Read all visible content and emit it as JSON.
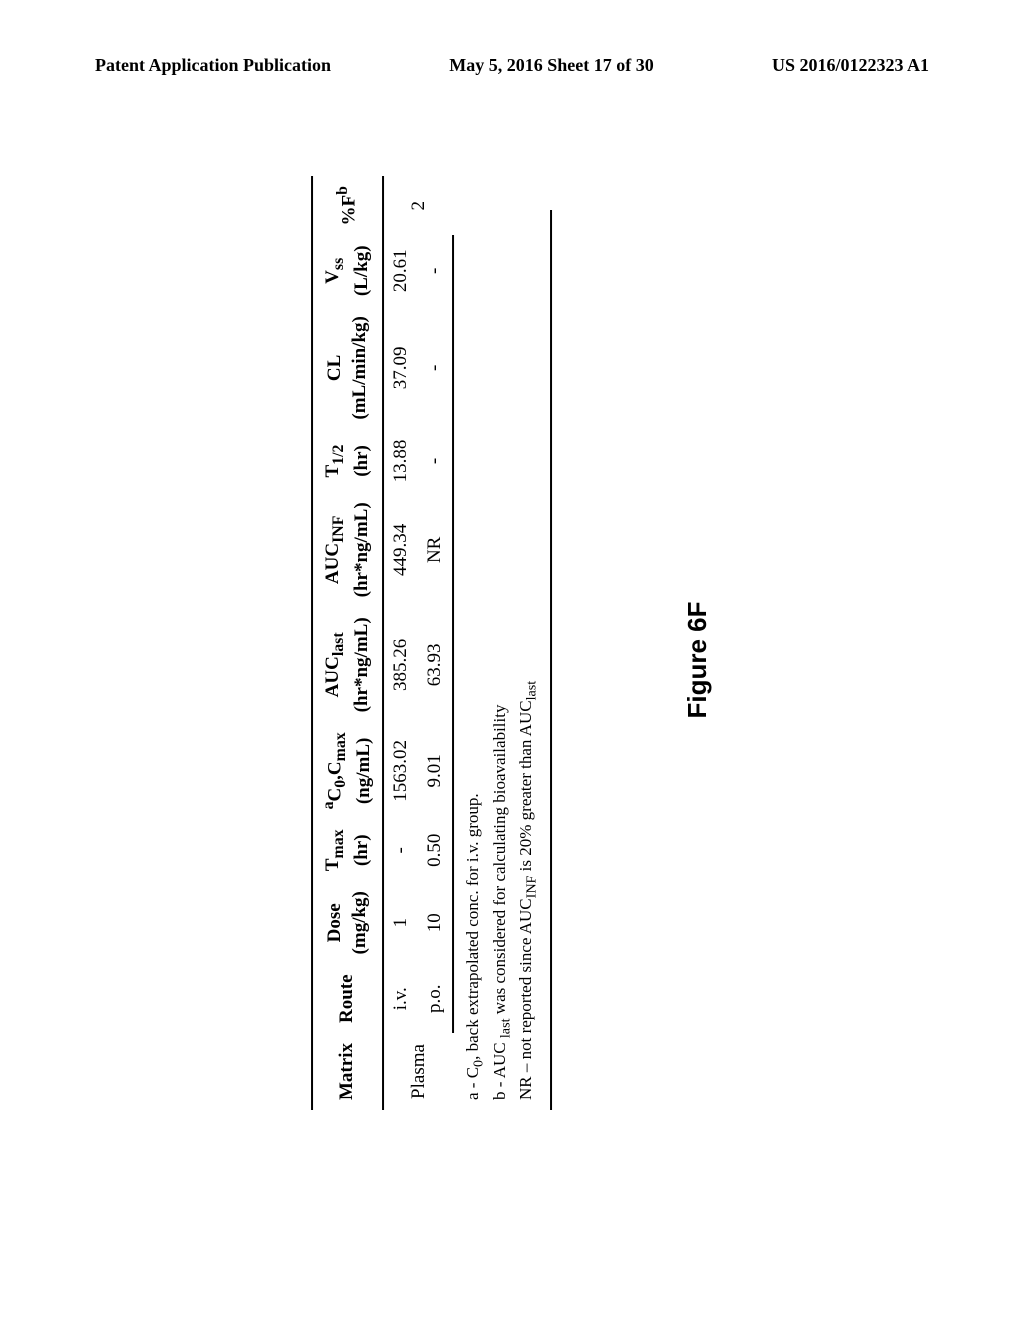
{
  "header": {
    "left": "Patent Application Publication",
    "center": "May 5, 2016  Sheet 17 of 30",
    "right": "US 2016/0122323 A1"
  },
  "table": {
    "columns": [
      {
        "label": "Matrix",
        "sub": ""
      },
      {
        "label": "Route",
        "sub": ""
      },
      {
        "label": "Dose",
        "sub": "(mg/kg)"
      },
      {
        "label": "T",
        "subscript": "max",
        "sub": "(hr)"
      },
      {
        "superscript": "a",
        "label": "C",
        "subscript": "0",
        "label2": ",C",
        "subscript2": "max",
        "sub": "(ng/mL)"
      },
      {
        "label": "AUC",
        "subscript": "last",
        "sub": "(hr*ng/mL)"
      },
      {
        "label": "AUC",
        "subscript": "INF",
        "sub": "(hr*ng/mL)"
      },
      {
        "label": "T",
        "subscript": "1/2",
        "sub": "(hr)"
      },
      {
        "label": "CL",
        "sub": "(mL/min/kg)"
      },
      {
        "label": "V",
        "subscript": "ss",
        "sub": "(L/kg)"
      },
      {
        "label": "%F",
        "superscript_after": "b",
        "sub": ""
      }
    ],
    "rows": [
      {
        "matrix": "Plasma",
        "route": "i.v.",
        "dose": "1",
        "tmax": "-",
        "c0cmax": "1563.02",
        "auclast": "385.26",
        "aucinf": "449.34",
        "thalf": "13.88",
        "cl": "37.09",
        "vss": "20.61",
        "f": ""
      },
      {
        "matrix": "",
        "route": "p.o.",
        "dose": "10",
        "tmax": "0.50",
        "c0cmax": "9.01",
        "auclast": "63.93",
        "aucinf": "NR",
        "thalf": "-",
        "cl": "-",
        "vss": "-",
        "f": "2"
      }
    ],
    "footnotes": [
      "a - C₀, back extrapolated conc. for i.v. group.",
      "b - AUC ₗₐₛₜ was considered for calculating bioavailability",
      "NR – not reported since AUC_INF is 20% greater than AUC_last"
    ]
  },
  "figure_label": "Figure 6F",
  "colors": {
    "text": "#000000",
    "background": "#ffffff",
    "border": "#000000"
  }
}
